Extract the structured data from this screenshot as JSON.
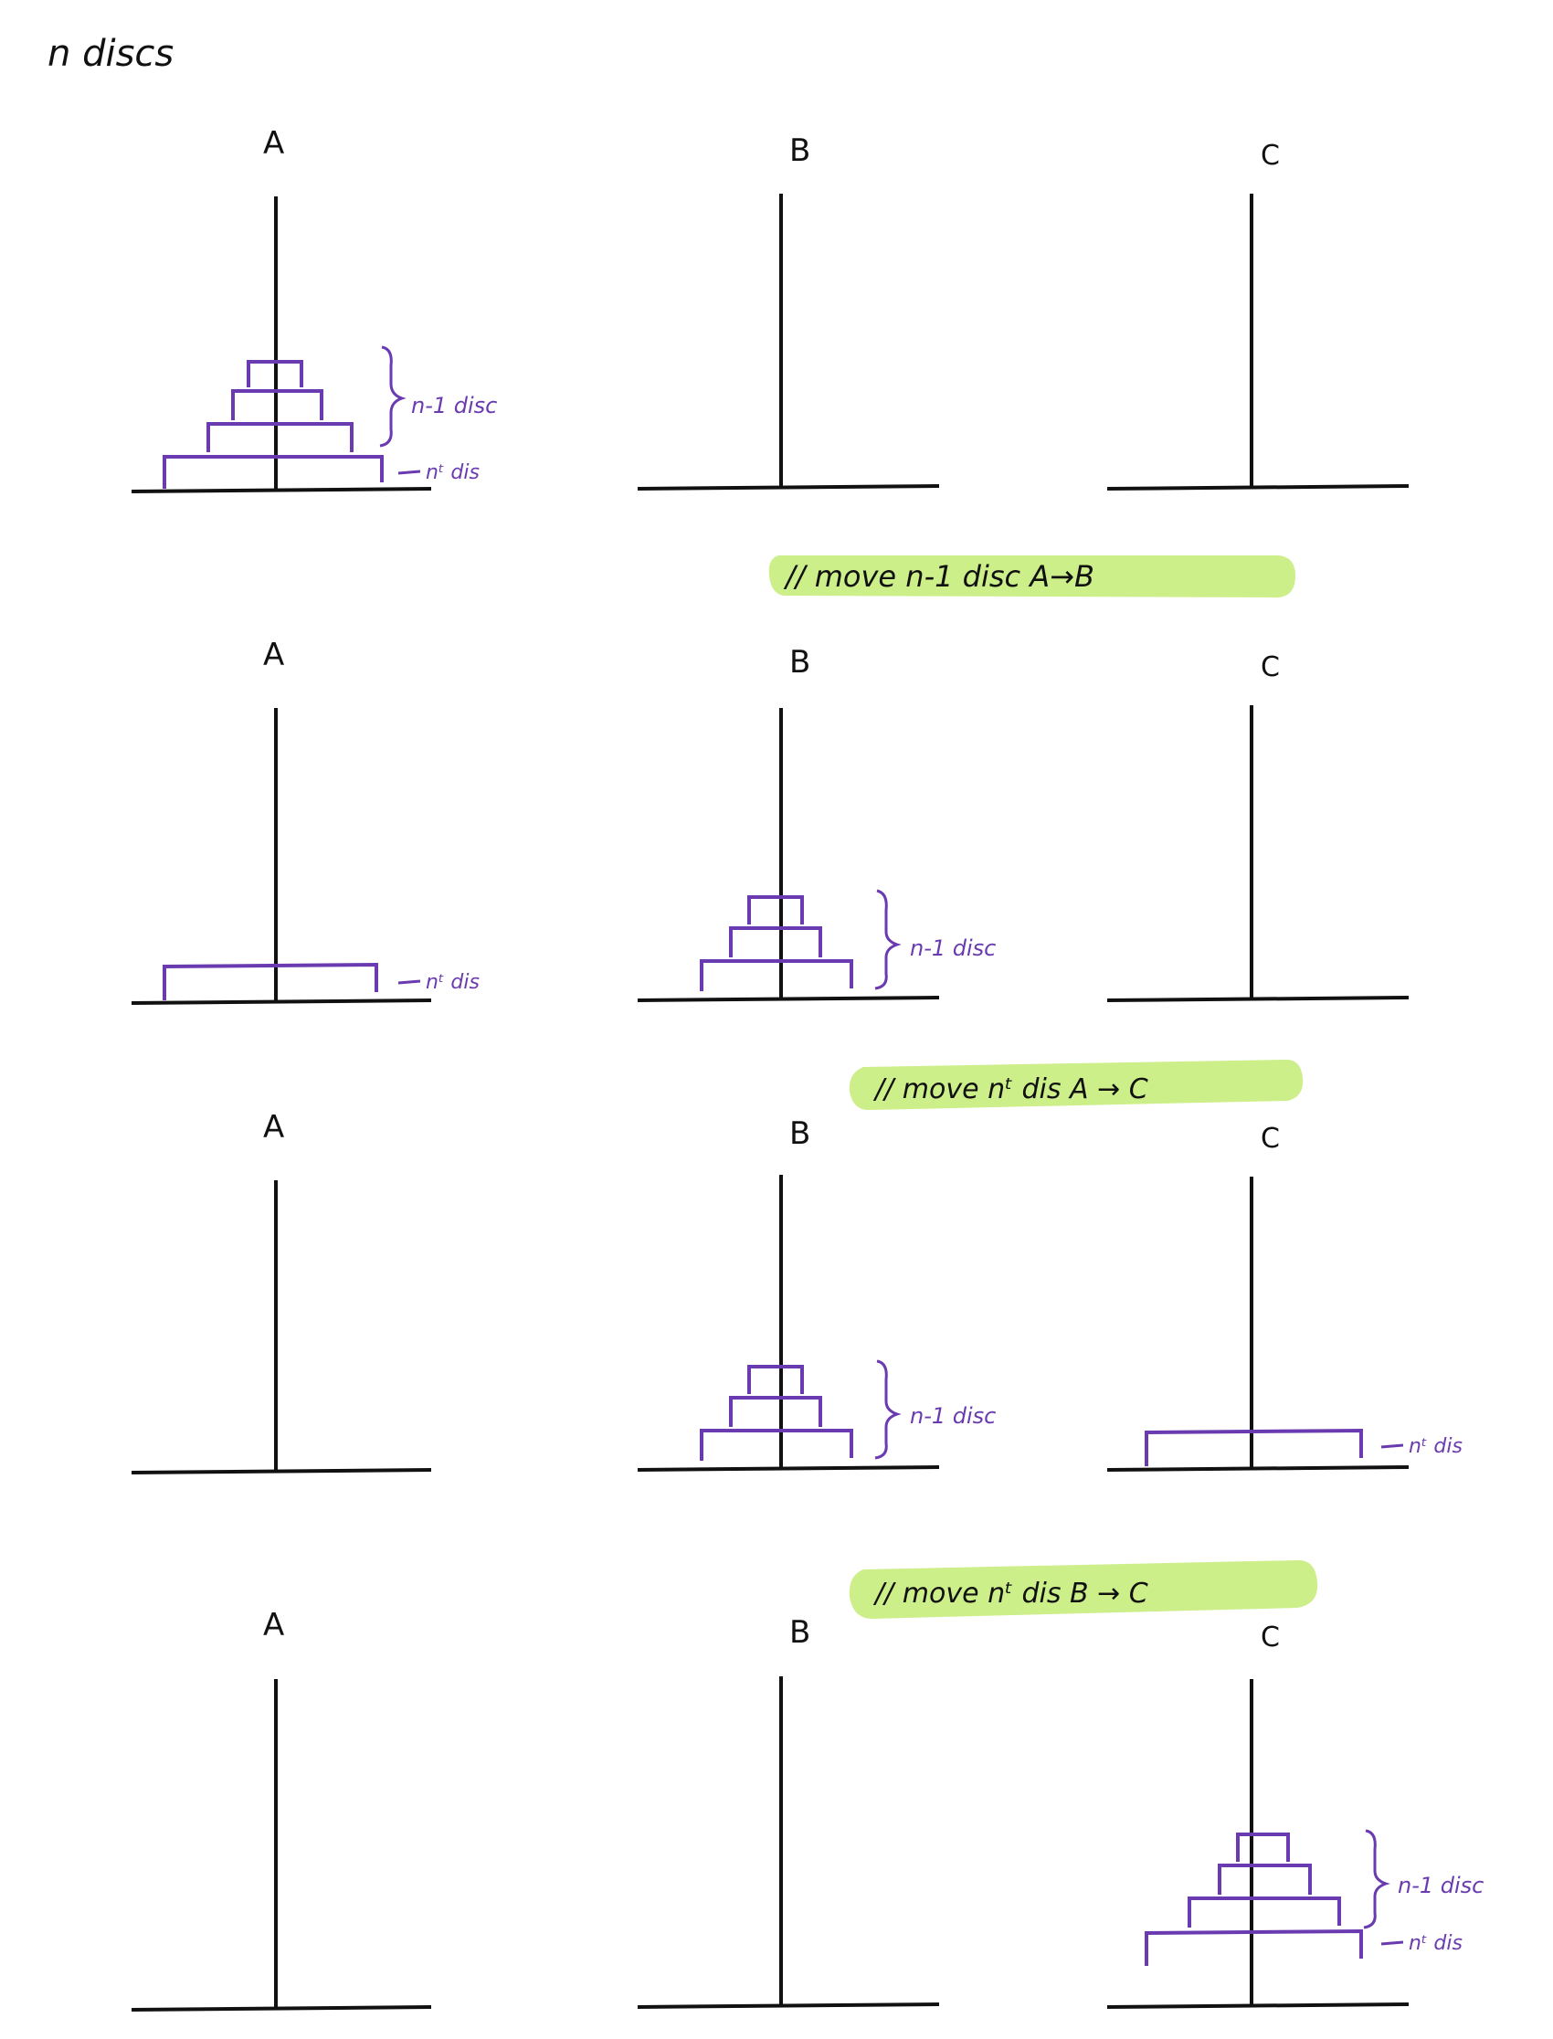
{
  "title": "n discs",
  "colors": {
    "ink": "#111111",
    "disc": "#6a3bb0",
    "highlight": "#cdef8a"
  },
  "peg_labels": [
    "A",
    "B",
    "C"
  ],
  "annotations": {
    "n_minus_1": "n-1 disc",
    "nth": "nᵗ dis"
  },
  "steps": [
    "// move  n-1 disc  A→B",
    "// move  nᵗ dis  A → C",
    "// move  nᵗ dis  B → C"
  ],
  "states": [
    {
      "A": "n",
      "B": "",
      "C": ""
    },
    {
      "A": "nth",
      "B": "n-1",
      "C": ""
    },
    {
      "A": "",
      "B": "n-1",
      "C": "nth"
    },
    {
      "A": "",
      "B": "",
      "C": "n"
    }
  ]
}
